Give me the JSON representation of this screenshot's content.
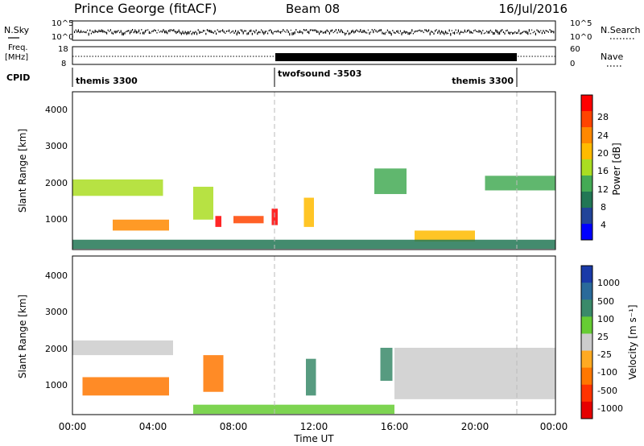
{
  "header": {
    "station": "Prince George (fitACF)",
    "beam": "Beam 08",
    "date": "16/Jul/2016"
  },
  "strip_labels": {
    "nsky": "N.Sky",
    "nsearch": "N.Search",
    "freq_line1": "Freq.",
    "freq_line2": "[MHz]",
    "nave": "Nave",
    "cpid": "CPID"
  },
  "nsky_ticks": [
    "10^5",
    "10^0"
  ],
  "nsearch_ticks": [
    "10^5",
    "10^0"
  ],
  "freq_ticks": [
    "18",
    "8"
  ],
  "nave_ticks": [
    "60",
    "0"
  ],
  "cpid_segments": [
    {
      "label": "themis 3300",
      "start": 0,
      "end": 10
    },
    {
      "label": "twofsound -3503",
      "start": 10,
      "end": 22
    },
    {
      "label": "themis 3300",
      "start": 22,
      "end": 24
    }
  ],
  "panel_ylabel": "Slant Range [km]",
  "y_ticks": [
    "4000",
    "3000",
    "2000",
    "1000"
  ],
  "x_ticks": [
    "00:00",
    "04:00",
    "08:00",
    "12:00",
    "16:00",
    "20:00",
    "00:00"
  ],
  "x_title": "Time UT",
  "power_colorbar": {
    "label": "Power [dB]",
    "ticks": [
      "28",
      "24",
      "20",
      "16",
      "12",
      "8",
      "4"
    ],
    "colors": [
      "#ff0000",
      "#ff4400",
      "#ff8800",
      "#ffbb00",
      "#aadd22",
      "#44aa55",
      "#227755",
      "#224499",
      "#0000ff"
    ]
  },
  "velocity_colorbar": {
    "label": "Velocity [m s⁻¹]",
    "ticks": [
      "1000",
      "500",
      "100",
      "25",
      "-25",
      "-100",
      "-500",
      "-1000"
    ],
    "colors": [
      "#1a3aa8",
      "#2a6a9a",
      "#3a8a6a",
      "#66cc33",
      "#cccccc",
      "#ffaa22",
      "#ff7700",
      "#ff3300",
      "#e60000"
    ]
  },
  "chart_data": {
    "type": "heatmap",
    "x_range_hours": [
      0,
      24
    ],
    "y_range_km": [
      180,
      4500
    ],
    "mode_changes_ut": [
      10,
      22
    ],
    "panels": [
      {
        "quantity": "Power [dB]",
        "value_range": [
          0,
          30
        ],
        "features": [
          {
            "start_hour": 0.0,
            "end_hour": 4.5,
            "range_km": [
              1650,
              2100
            ],
            "value": 15
          },
          {
            "start_hour": 2.0,
            "end_hour": 4.8,
            "range_km": [
              700,
              1000
            ],
            "value": 22
          },
          {
            "start_hour": 6.0,
            "end_hour": 7.0,
            "range_km": [
              1000,
              1900
            ],
            "value": 14
          },
          {
            "start_hour": 7.1,
            "end_hour": 7.4,
            "range_km": [
              800,
              1100
            ],
            "value": 27
          },
          {
            "start_hour": 8.0,
            "end_hour": 9.5,
            "range_km": [
              900,
              1100
            ],
            "value": 24
          },
          {
            "start_hour": 9.9,
            "end_hour": 10.2,
            "range_km": [
              850,
              1300
            ],
            "value": 28
          },
          {
            "start_hour": 11.5,
            "end_hour": 12.0,
            "range_km": [
              800,
              1600
            ],
            "value": 18
          },
          {
            "start_hour": 15.0,
            "end_hour": 16.6,
            "range_km": [
              1700,
              2400
            ],
            "value": 12
          },
          {
            "start_hour": 17.0,
            "end_hour": 20.0,
            "range_km": [
              400,
              700
            ],
            "value": 20
          },
          {
            "start_hour": 20.5,
            "end_hour": 24.0,
            "range_km": [
              1800,
              2200
            ],
            "value": 12
          },
          {
            "start_hour": 0.0,
            "end_hour": 24.0,
            "range_km": [
              200,
              450
            ],
            "value": 10
          }
        ]
      },
      {
        "quantity": "Velocity [m s-1]",
        "value_range": [
          -1000,
          1000
        ],
        "features": [
          {
            "start_hour": 0.5,
            "end_hour": 4.8,
            "range_km": [
              700,
              1200
            ],
            "value": -150
          },
          {
            "start_hour": 0.0,
            "end_hour": 5.0,
            "range_km": [
              1800,
              2200
            ],
            "value": 0
          },
          {
            "start_hour": 6.5,
            "end_hour": 7.5,
            "range_km": [
              800,
              1800
            ],
            "value": -300
          },
          {
            "start_hour": 11.6,
            "end_hour": 12.1,
            "range_km": [
              700,
              1700
            ],
            "value": 150
          },
          {
            "start_hour": 15.3,
            "end_hour": 15.9,
            "range_km": [
              1100,
              2000
            ],
            "value": 150
          },
          {
            "start_hour": 6.0,
            "end_hour": 16.0,
            "range_km": [
              200,
              450
            ],
            "value": 60
          },
          {
            "start_hour": 16.0,
            "end_hour": 24.0,
            "range_km": [
              600,
              2000
            ],
            "value": 0
          }
        ]
      }
    ]
  }
}
